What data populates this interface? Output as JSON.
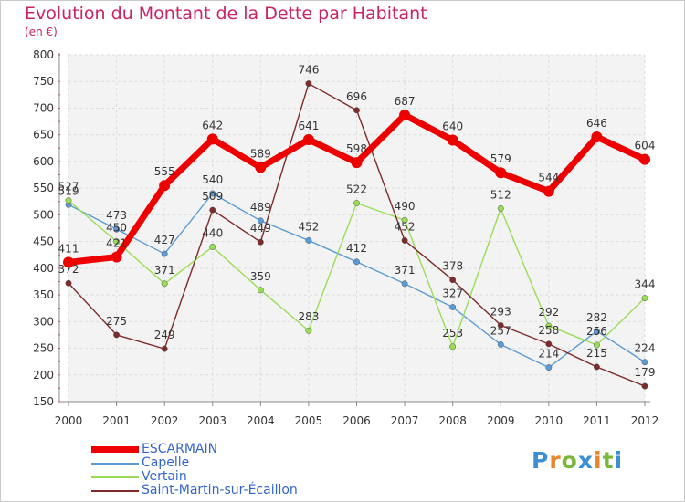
{
  "title": "Evolution du Montant de la Dette par Habitant",
  "subtitle": "(en €)",
  "logo": {
    "letters": [
      "P",
      "r",
      "o",
      "x",
      "i",
      "t",
      "i"
    ],
    "colors": [
      "#3b8fd4",
      "#e8862c",
      "#79b83c",
      "#3b8fd4",
      "#e8862c",
      "#79b83c",
      "#3b8fd4"
    ]
  },
  "chart_data": {
    "type": "line",
    "title": "Evolution du Montant de la Dette par Habitant",
    "ylabel": "(en €)",
    "xlabel": "",
    "x": [
      "2000",
      "2001",
      "2002",
      "2003",
      "2004",
      "2005",
      "2006",
      "2007",
      "2008",
      "2009",
      "2010",
      "2011",
      "2012"
    ],
    "ylim": [
      150,
      800
    ],
    "yticks": [
      150,
      200,
      250,
      300,
      350,
      400,
      450,
      500,
      550,
      600,
      650,
      700,
      750,
      800
    ],
    "grid": true,
    "legend_position": "bottom-left",
    "series": [
      {
        "name": "Capelle",
        "color": "#5b9bd5",
        "values": [
          519,
          473,
          427,
          540,
          489,
          452,
          412,
          371,
          327,
          257,
          214,
          282,
          224
        ],
        "labels": [
          "519",
          "473",
          "427",
          "540",
          "489",
          "452",
          "412",
          "371",
          "327",
          "257",
          "214",
          "282",
          "224"
        ]
      },
      {
        "name": "Vertain",
        "color": "#99dd55",
        "values": [
          527,
          450,
          371,
          440,
          359,
          283,
          522,
          490,
          253,
          512,
          292,
          256,
          344
        ],
        "labels": [
          "527",
          "450",
          "371",
          "440",
          "359",
          "283",
          "522",
          "490",
          "253",
          "512",
          "292",
          "256",
          "344"
        ]
      },
      {
        "name": "Saint-Martin-sur-Écaillon",
        "color": "#7f2a2a",
        "values": [
          372,
          275,
          249,
          509,
          449,
          746,
          696,
          452,
          378,
          293,
          258,
          215,
          179
        ],
        "labels": [
          "372",
          "275",
          "249",
          "509",
          "449",
          "746",
          "696",
          "452",
          "378",
          "293",
          "258",
          "215",
          "179"
        ]
      },
      {
        "name": "ESCARMAIN",
        "color": "#ee0000",
        "values": [
          411,
          421,
          555,
          642,
          589,
          641,
          598,
          687,
          640,
          579,
          544,
          646,
          604
        ],
        "labels": [
          "411",
          "421",
          "555",
          "642",
          "589",
          "641",
          "598",
          "687",
          "640",
          "579",
          "544",
          "646",
          "604"
        ]
      }
    ],
    "legend_order": [
      "ESCARMAIN",
      "Capelle",
      "Vertain",
      "Saint-Martin-sur-Écaillon"
    ]
  }
}
